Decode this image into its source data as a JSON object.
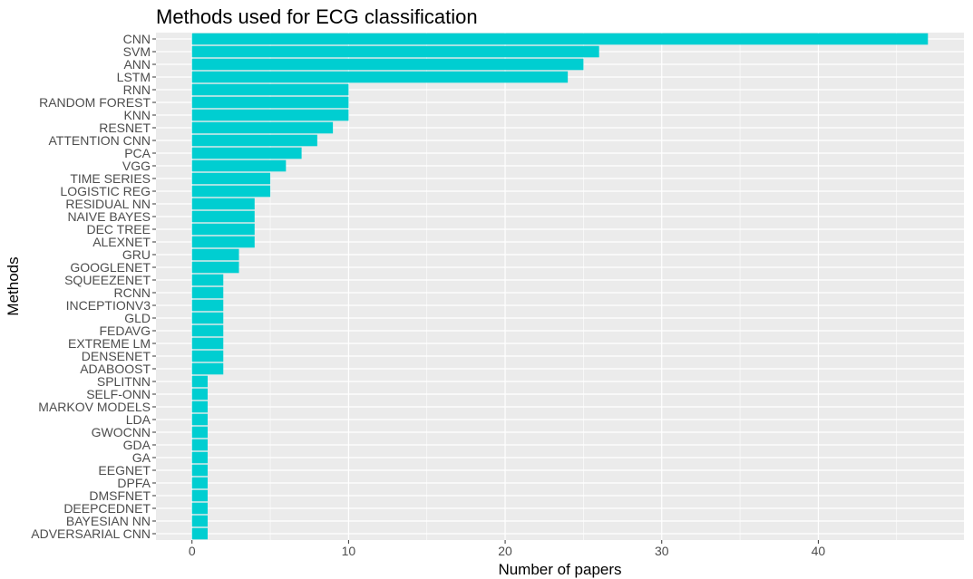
{
  "chart_data": {
    "type": "bar",
    "orientation": "horizontal",
    "title": "Methods used for ECG classification",
    "xlabel": "Number of papers",
    "ylabel": "Methods",
    "xlim": [
      -2.3,
      49.3
    ],
    "xticks": [
      0,
      10,
      20,
      30,
      40
    ],
    "grid": true,
    "bar_color": "#00CED1",
    "panel_color": "#EBEBEB",
    "categories": [
      "CNN",
      "SVM",
      "ANN",
      "LSTM",
      "RNN",
      "RANDOM FOREST",
      "KNN",
      "RESNET",
      "ATTENTION CNN",
      "PCA",
      "VGG",
      "TIME SERIES",
      "LOGISTIC REG",
      "RESIDUAL NN",
      "NAIVE BAYES",
      "DEC TREE",
      "ALEXNET",
      "GRU",
      "GOOGLENET",
      "SQUEEZENET",
      "RCNN",
      "INCEPTIONV3",
      "GLD",
      "FEDAVG",
      "EXTREME LM",
      "DENSENET",
      "ADABOOST",
      "SPLITNN",
      "SELF-ONN",
      "MARKOV MODELS",
      "LDA",
      "GWOCNN",
      "GDA",
      "GA",
      "EEGNET",
      "DPFA",
      "DMSFNET",
      "DEEPCEDNET",
      "BAYESIAN NN",
      "ADVERSARIAL CNN"
    ],
    "values": [
      47,
      26,
      25,
      24,
      10,
      10,
      10,
      9,
      8,
      7,
      6,
      5,
      5,
      4,
      4,
      4,
      4,
      3,
      3,
      2,
      2,
      2,
      2,
      2,
      2,
      2,
      2,
      1,
      1,
      1,
      1,
      1,
      1,
      1,
      1,
      1,
      1,
      1,
      1,
      1
    ]
  }
}
